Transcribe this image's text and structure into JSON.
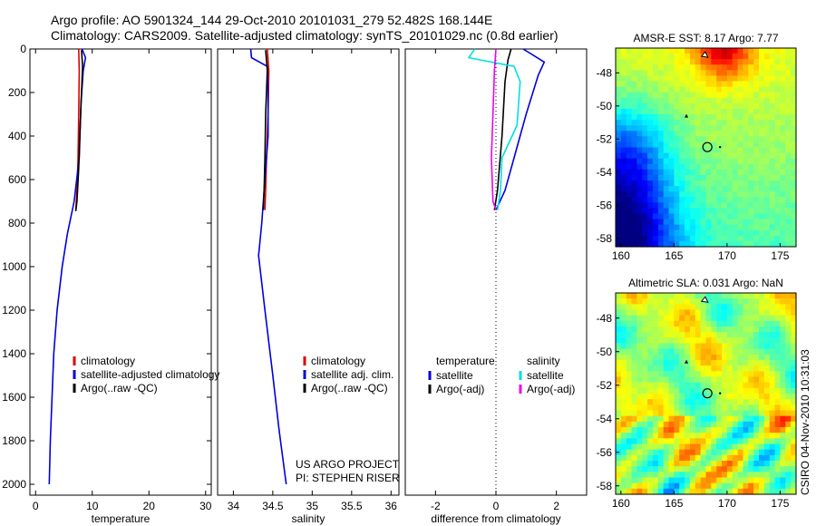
{
  "header": {
    "title_line1": "Argo profile: AO 5901324_144 29-Oct-2010 20101031_279 52.482S 168.144E",
    "title_line2": "Climatology: CARS2009. Satellite-adjusted climatology: synTS_20101029.nc (0.8d earlier)"
  },
  "footer": {
    "project": "US ARGO PROJECT",
    "pi": "PI: STEPHEN RISER",
    "stamp": "CSIRO 04-Nov-2010 10:31:03"
  },
  "colors": {
    "climatology": "#dd0000",
    "satellite": "#0000dd",
    "argo": "#000000",
    "salinity_satellite": "#00e0e0",
    "salinity_argo": "#ee00ee",
    "axes": "#000000"
  },
  "chart_data": [
    {
      "type": "line",
      "xlabel": "temperature",
      "ylabel": "",
      "xlim": [
        -1,
        31
      ],
      "ylim": [
        2050,
        0
      ],
      "xticks": [
        0,
        10,
        20,
        30
      ],
      "yticks": [
        0,
        200,
        400,
        600,
        800,
        1000,
        1200,
        1400,
        1600,
        1800,
        2000
      ],
      "legend": [
        "climatology",
        "satellite-adjusted climatology",
        "Argo(..raw -QC)"
      ],
      "legend_position": "lower-right",
      "series": [
        {
          "name": "climatology",
          "color": "#dd0000",
          "points": [
            [
              7.6,
              0
            ],
            [
              7.7,
              100
            ],
            [
              7.6,
              300
            ],
            [
              7.5,
              500
            ],
            [
              7.3,
              650
            ],
            [
              7.1,
              740
            ]
          ]
        },
        {
          "name": "satellite-adjusted climatology",
          "color": "#0000dd",
          "points": [
            [
              8.2,
              0
            ],
            [
              8.8,
              40
            ],
            [
              8.4,
              100
            ],
            [
              8.0,
              250
            ],
            [
              7.7,
              500
            ],
            [
              6.8,
              700
            ],
            [
              5.6,
              850
            ],
            [
              4.7,
              1000
            ],
            [
              3.8,
              1200
            ],
            [
              3.2,
              1400
            ],
            [
              2.9,
              1600
            ],
            [
              2.6,
              1800
            ],
            [
              2.4,
              2000
            ]
          ]
        },
        {
          "name": "Argo(..raw -QC)",
          "color": "#000000",
          "points": [
            [
              8.1,
              5
            ],
            [
              8.3,
              80
            ],
            [
              8.1,
              200
            ],
            [
              7.8,
              400
            ],
            [
              7.6,
              550
            ],
            [
              7.3,
              700
            ],
            [
              7.1,
              745
            ]
          ]
        }
      ]
    },
    {
      "type": "line",
      "xlabel": "salinity",
      "ylabel": "",
      "xlim": [
        33.8,
        36.1
      ],
      "ylim": [
        2050,
        0
      ],
      "xticks": [
        34,
        34.5,
        35,
        35.5,
        36
      ],
      "yticks": [],
      "legend": [
        "climatology",
        "satellite adj. clim.",
        "Argo(..raw -QC)"
      ],
      "legend_position": "lower-right",
      "series": [
        {
          "name": "climatology",
          "color": "#dd0000",
          "points": [
            [
              34.43,
              0
            ],
            [
              34.45,
              100
            ],
            [
              34.44,
              300
            ],
            [
              34.42,
              500
            ],
            [
              34.41,
              650
            ],
            [
              34.4,
              740
            ]
          ]
        },
        {
          "name": "satellite adj. clim.",
          "color": "#0000dd",
          "points": [
            [
              34.22,
              0
            ],
            [
              34.23,
              40
            ],
            [
              34.43,
              80
            ],
            [
              34.44,
              200
            ],
            [
              34.44,
              400
            ],
            [
              34.4,
              600
            ],
            [
              34.36,
              800
            ],
            [
              34.32,
              950
            ],
            [
              34.4,
              1200
            ],
            [
              34.5,
              1500
            ],
            [
              34.58,
              1750
            ],
            [
              34.67,
              2000
            ]
          ]
        },
        {
          "name": "Argo(..raw -QC)",
          "color": "#000000",
          "points": [
            [
              34.41,
              5
            ],
            [
              34.43,
              100
            ],
            [
              34.41,
              300
            ],
            [
              34.4,
              500
            ],
            [
              34.39,
              650
            ],
            [
              34.38,
              740
            ]
          ]
        }
      ]
    },
    {
      "type": "line",
      "xlabel": "difference from climatology",
      "ylabel": "",
      "xlim": [
        -3,
        3
      ],
      "ylim": [
        2050,
        0
      ],
      "xticks": [
        -2,
        0,
        2
      ],
      "yticks": [],
      "legend": [
        "temperature",
        "satellite",
        "Argo(-adj)",
        "salinity",
        "satellite",
        "Argo(-adj)"
      ],
      "legend_position": "lower-center",
      "series": [
        {
          "name": "temperature satellite",
          "color": "#0000dd",
          "points": [
            [
              0.9,
              0
            ],
            [
              1.6,
              60
            ],
            [
              1.4,
              120
            ],
            [
              1.0,
              300
            ],
            [
              0.6,
              500
            ],
            [
              0.3,
              650
            ],
            [
              0.0,
              740
            ]
          ]
        },
        {
          "name": "temperature Argo(-adj)",
          "color": "#000000",
          "points": [
            [
              0.5,
              0
            ],
            [
              0.4,
              50
            ],
            [
              0.3,
              150
            ],
            [
              0.2,
              400
            ],
            [
              0.05,
              650
            ],
            [
              -0.05,
              740
            ]
          ]
        },
        {
          "name": "salinity satellite",
          "color": "#00e0e0",
          "points": [
            [
              -0.7,
              0
            ],
            [
              -0.9,
              40
            ],
            [
              0.6,
              80
            ],
            [
              0.8,
              150
            ],
            [
              0.7,
              350
            ],
            [
              0.2,
              500
            ],
            [
              0.15,
              650
            ],
            [
              0.05,
              740
            ]
          ]
        },
        {
          "name": "salinity Argo(-adj)",
          "color": "#ee00ee",
          "points": [
            [
              0.0,
              0
            ],
            [
              -0.05,
              100
            ],
            [
              -0.1,
              300
            ],
            [
              -0.15,
              500
            ],
            [
              -0.1,
              700
            ],
            [
              0.0,
              740
            ]
          ]
        }
      ]
    },
    {
      "type": "heatmap",
      "title": "AMSR-E SST: 8.17 Argo: 7.77",
      "xlim": [
        159.5,
        176.5
      ],
      "ylim": [
        -58.5,
        -46.5
      ],
      "xticks": [
        160,
        165,
        170,
        175
      ],
      "yticks": [
        -48,
        -50,
        -52,
        -54,
        -56,
        -58
      ],
      "colormap": "jet",
      "marker": {
        "lon": 168.144,
        "lat": -52.482
      }
    },
    {
      "type": "heatmap",
      "title": "Altimetric SLA: 0.031 Argo: NaN",
      "xlim": [
        159.5,
        176.5
      ],
      "ylim": [
        -58.5,
        -46.5
      ],
      "xticks": [
        160,
        165,
        170,
        175
      ],
      "yticks": [
        -48,
        -50,
        -52,
        -54,
        -56,
        -58
      ],
      "colormap": "jet",
      "marker": {
        "lon": 168.144,
        "lat": -52.482
      }
    }
  ]
}
